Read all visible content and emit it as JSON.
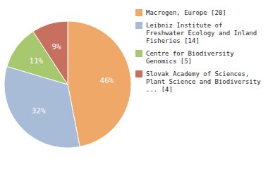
{
  "chart_data": {
    "type": "pie",
    "categories": [
      "Macrogen, Europe [20]",
      "Leibniz Institute of\nFreshwater Ecology and Inland\nFisheries [14]",
      "Centre for Biodiversity\nGenomics [5]",
      "Slovak Academy of Sciences,\nPlant Science and Biodiversity\n... [4]"
    ],
    "values": [
      46,
      32,
      11,
      9
    ],
    "value_labels": [
      "46%",
      "32%",
      "11%",
      "9%"
    ],
    "colors": [
      "#f0a868",
      "#a8bcd8",
      "#a8c870",
      "#c87060"
    ],
    "data_labels": true,
    "legend": "right"
  }
}
